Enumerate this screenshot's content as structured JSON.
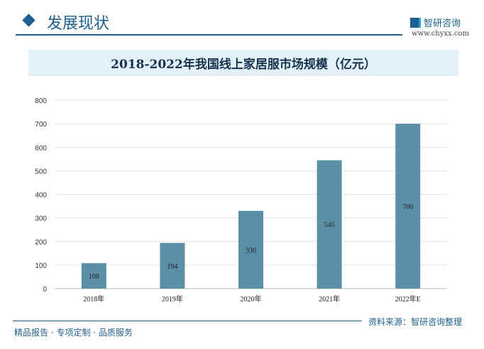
{
  "header": {
    "section_title": "发展现状",
    "logo_text": "智研咨询",
    "url": "www.chyxx.com"
  },
  "footer": {
    "source": "资料来源：智研咨询整理",
    "slogan": "精品报告 · 专项定制 · 品质服务"
  },
  "colors": {
    "bar": "#5b8fa8",
    "accent": "#1f5f8f",
    "title_bg": "#e3f1fa"
  },
  "chart_data": {
    "type": "bar",
    "title": "2018-2022年我国线上家居服市场规模（亿元）",
    "categories": [
      "2018年",
      "2019年",
      "2020年",
      "2021年",
      "2022年E"
    ],
    "values": [
      108,
      194,
      330,
      545,
      700
    ],
    "ylim": [
      0,
      800
    ],
    "yticks": [
      "0",
      "100",
      "200",
      "300",
      "400",
      "500",
      "600",
      "700",
      "800"
    ],
    "grid": true
  }
}
